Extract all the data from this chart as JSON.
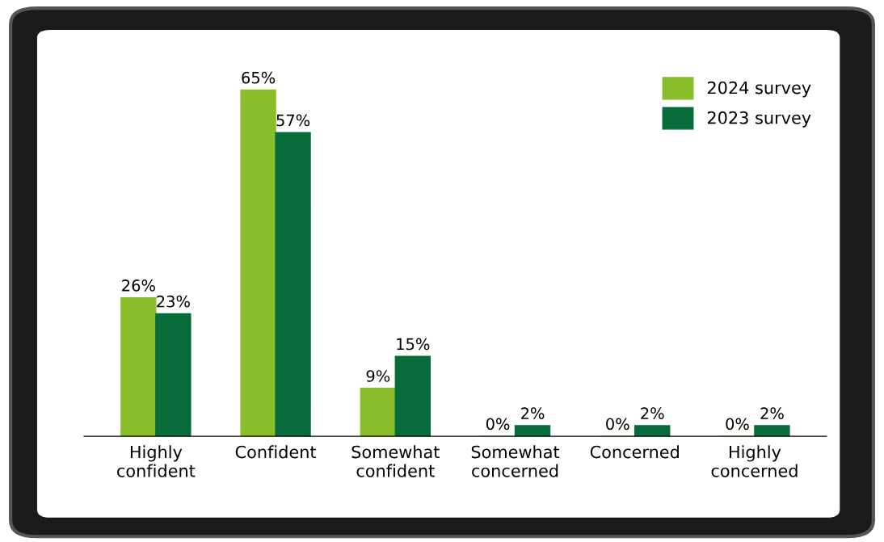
{
  "chart_data": {
    "type": "bar",
    "categories": [
      "Highly\nconfident",
      "Confident",
      "Somewhat\nconfident",
      "Somewhat\nconcerned",
      "Concerned",
      "Highly\nconcerned"
    ],
    "series": [
      {
        "name": "2024 survey",
        "color": "#8abd2a",
        "values": [
          26,
          65,
          9,
          0,
          0,
          0
        ],
        "value_labels": [
          "26%",
          "65%",
          "9%",
          "0%",
          "0%",
          "0%"
        ]
      },
      {
        "name": "2023 survey",
        "color": "#076b3a",
        "values": [
          23,
          57,
          15,
          2,
          2,
          2
        ],
        "value_labels": [
          "23%",
          "57%",
          "15%",
          "2%",
          "2%",
          "2%"
        ]
      }
    ],
    "legend": "top right",
    "grid": false
  }
}
